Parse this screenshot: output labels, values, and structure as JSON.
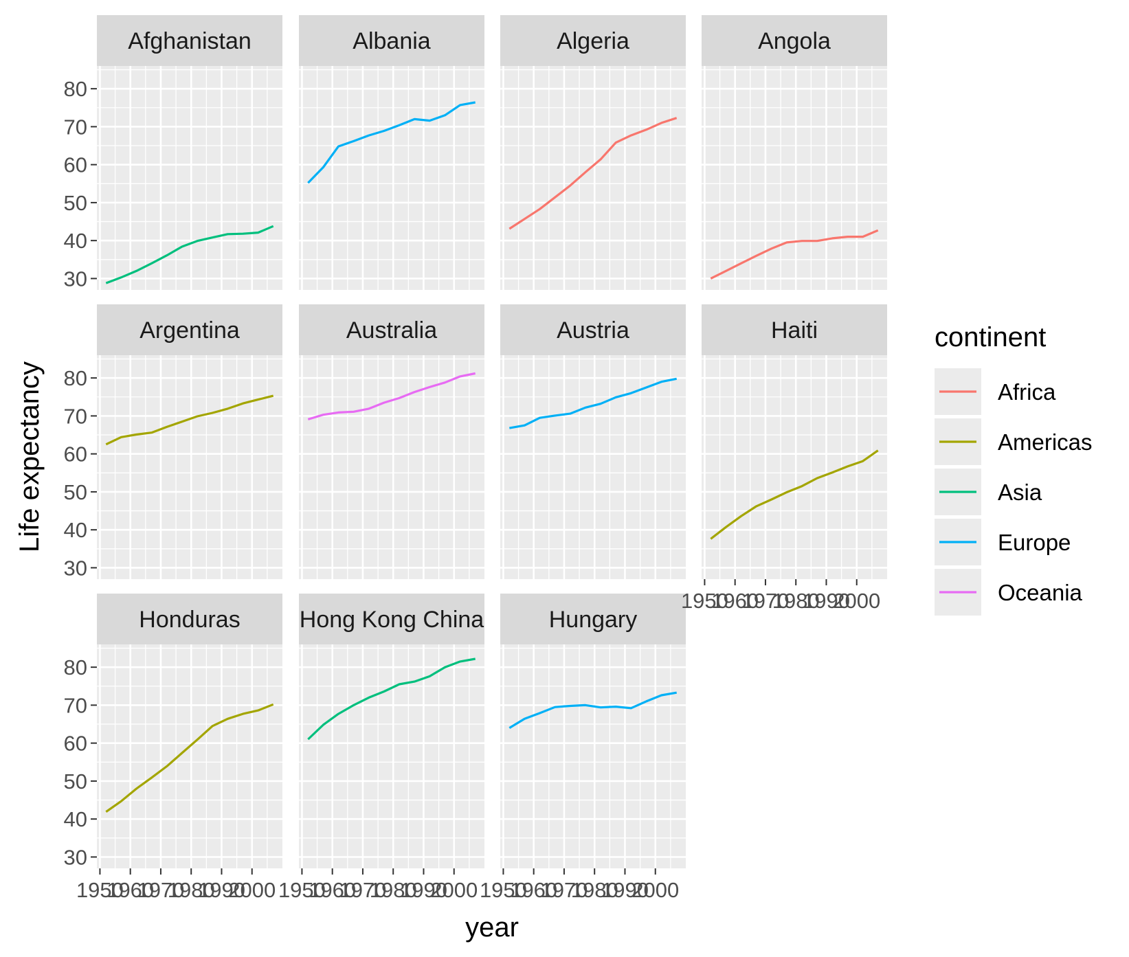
{
  "chart_data": {
    "type": "line",
    "facet_by": "country",
    "xlabel": "year",
    "ylabel": "Life expectancy",
    "ylim": [
      27,
      86
    ],
    "xlim": [
      1949,
      2010
    ],
    "y_ticks": [
      30,
      40,
      50,
      60,
      70,
      80
    ],
    "x_ticks": [
      1950,
      1960,
      1970,
      1980,
      1990,
      2000
    ],
    "grid": true,
    "legend": {
      "title": "continent",
      "placement": "right",
      "entries": [
        {
          "name": "Africa",
          "color": "#F8766D"
        },
        {
          "name": "Americas",
          "color": "#A3A500"
        },
        {
          "name": "Asia",
          "color": "#00BF7D"
        },
        {
          "name": "Europe",
          "color": "#00B0F6"
        },
        {
          "name": "Oceania",
          "color": "#E76BF3"
        }
      ]
    },
    "x": [
      1952,
      1957,
      1962,
      1967,
      1972,
      1977,
      1982,
      1987,
      1992,
      1997,
      2002,
      2007
    ],
    "panels": [
      {
        "country": "Afghanistan",
        "continent": "Asia",
        "values": [
          28.8,
          30.3,
          32.0,
          34.0,
          36.1,
          38.4,
          39.9,
          40.8,
          41.7,
          41.8,
          42.1,
          43.8
        ]
      },
      {
        "country": "Albania",
        "continent": "Europe",
        "values": [
          55.2,
          59.3,
          64.8,
          66.2,
          67.7,
          68.9,
          70.4,
          72.0,
          71.6,
          73.0,
          75.7,
          76.4
        ]
      },
      {
        "country": "Algeria",
        "continent": "Africa",
        "values": [
          43.1,
          45.7,
          48.3,
          51.4,
          54.5,
          58.0,
          61.4,
          65.8,
          67.7,
          69.2,
          71.0,
          72.3
        ]
      },
      {
        "country": "Angola",
        "continent": "Africa",
        "values": [
          30.0,
          32.0,
          34.0,
          36.0,
          37.9,
          39.5,
          39.9,
          39.9,
          40.6,
          41.0,
          41.0,
          42.7
        ]
      },
      {
        "country": "Argentina",
        "continent": "Americas",
        "values": [
          62.5,
          64.4,
          65.1,
          65.6,
          67.1,
          68.5,
          69.9,
          70.8,
          71.9,
          73.3,
          74.3,
          75.3
        ]
      },
      {
        "country": "Australia",
        "continent": "Oceania",
        "values": [
          69.1,
          70.3,
          70.9,
          71.1,
          71.9,
          73.5,
          74.7,
          76.3,
          77.6,
          78.8,
          80.4,
          81.2
        ]
      },
      {
        "country": "Austria",
        "continent": "Europe",
        "values": [
          66.8,
          67.5,
          69.5,
          70.1,
          70.6,
          72.2,
          73.2,
          74.9,
          76.0,
          77.5,
          79.0,
          79.8
        ]
      },
      {
        "country": "Haiti",
        "continent": "Americas",
        "values": [
          37.6,
          40.7,
          43.6,
          46.2,
          48.0,
          49.9,
          51.5,
          53.6,
          55.1,
          56.7,
          58.1,
          60.9
        ]
      },
      {
        "country": "Honduras",
        "continent": "Americas",
        "values": [
          41.9,
          44.7,
          48.0,
          50.9,
          53.9,
          57.4,
          60.9,
          64.5,
          66.4,
          67.7,
          68.6,
          70.2
        ]
      },
      {
        "country": "Hong Kong China",
        "continent": "Asia",
        "values": [
          61.0,
          64.8,
          67.7,
          70.0,
          72.0,
          73.6,
          75.5,
          76.2,
          77.6,
          80.0,
          81.5,
          82.2
        ]
      },
      {
        "country": "Hungary",
        "continent": "Europe",
        "values": [
          64.0,
          66.4,
          67.9,
          69.5,
          69.8,
          70.0,
          69.4,
          69.6,
          69.2,
          71.0,
          72.6,
          73.3
        ]
      }
    ]
  }
}
